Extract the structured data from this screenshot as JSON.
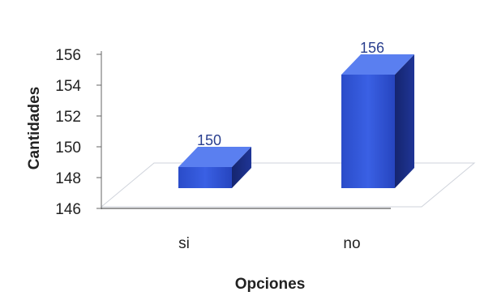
{
  "chart_data": {
    "type": "bar",
    "categories": [
      "si",
      "no"
    ],
    "values": [
      150,
      156
    ],
    "data_labels": [
      "150",
      "156"
    ],
    "title": "",
    "xlabel": "Opciones",
    "ylabel": "Cantidades",
    "ylim": [
      146,
      156
    ],
    "yticks": [
      "146",
      "148",
      "150",
      "152",
      "154",
      "156"
    ],
    "grid": false,
    "legend": "none",
    "style": "3d-column",
    "colors": {
      "bar_front": "#2f55d8",
      "bar_side": "#1a2e88",
      "bar_top": "#5a7ff0"
    }
  }
}
